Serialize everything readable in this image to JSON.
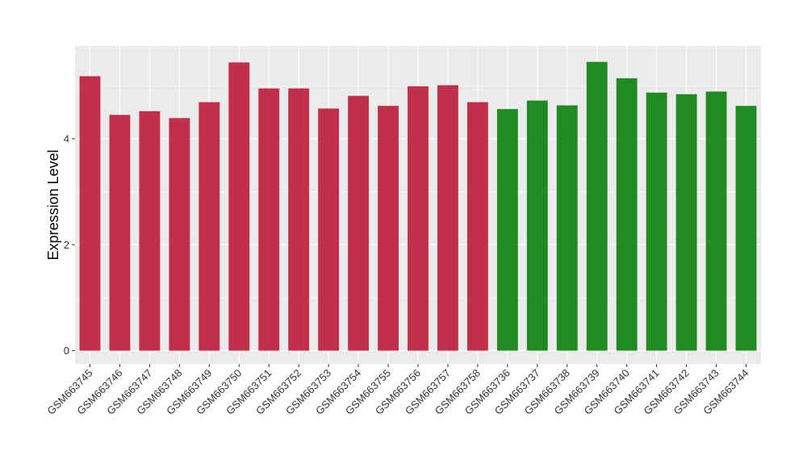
{
  "chart_data": {
    "type": "bar",
    "title": "",
    "xlabel": "",
    "ylabel": "Expression Level",
    "ylim": [
      -0.25,
      5.75
    ],
    "yticks": [
      0,
      2,
      4
    ],
    "ytick_labels": [
      "0",
      "2",
      "4"
    ],
    "grid": true,
    "categories": [
      "GSM663745",
      "GSM663746",
      "GSM663747",
      "GSM663748",
      "GSM663749",
      "GSM663750",
      "GSM663751",
      "GSM663752",
      "GSM663753",
      "GSM663754",
      "GSM663755",
      "GSM663756",
      "GSM663757",
      "GSM663758",
      "GSM663736",
      "GSM663737",
      "GSM663738",
      "GSM663739",
      "GSM663740",
      "GSM663741",
      "GSM663742",
      "GSM663743",
      "GSM663744"
    ],
    "values": [
      5.18,
      4.45,
      4.52,
      4.39,
      4.69,
      5.44,
      4.95,
      4.95,
      4.57,
      4.81,
      4.62,
      4.99,
      5.01,
      4.69,
      4.56,
      4.72,
      4.63,
      5.45,
      5.14,
      4.87,
      4.84,
      4.89,
      4.62
    ],
    "groups": [
      "red",
      "red",
      "red",
      "red",
      "red",
      "red",
      "red",
      "red",
      "red",
      "red",
      "red",
      "red",
      "red",
      "red",
      "green",
      "green",
      "green",
      "green",
      "green",
      "green",
      "green",
      "green",
      "green"
    ],
    "colors": {
      "red": "#c1304a",
      "green": "#218b22",
      "panel": "#ebebeb",
      "grid": "#ffffff"
    }
  }
}
